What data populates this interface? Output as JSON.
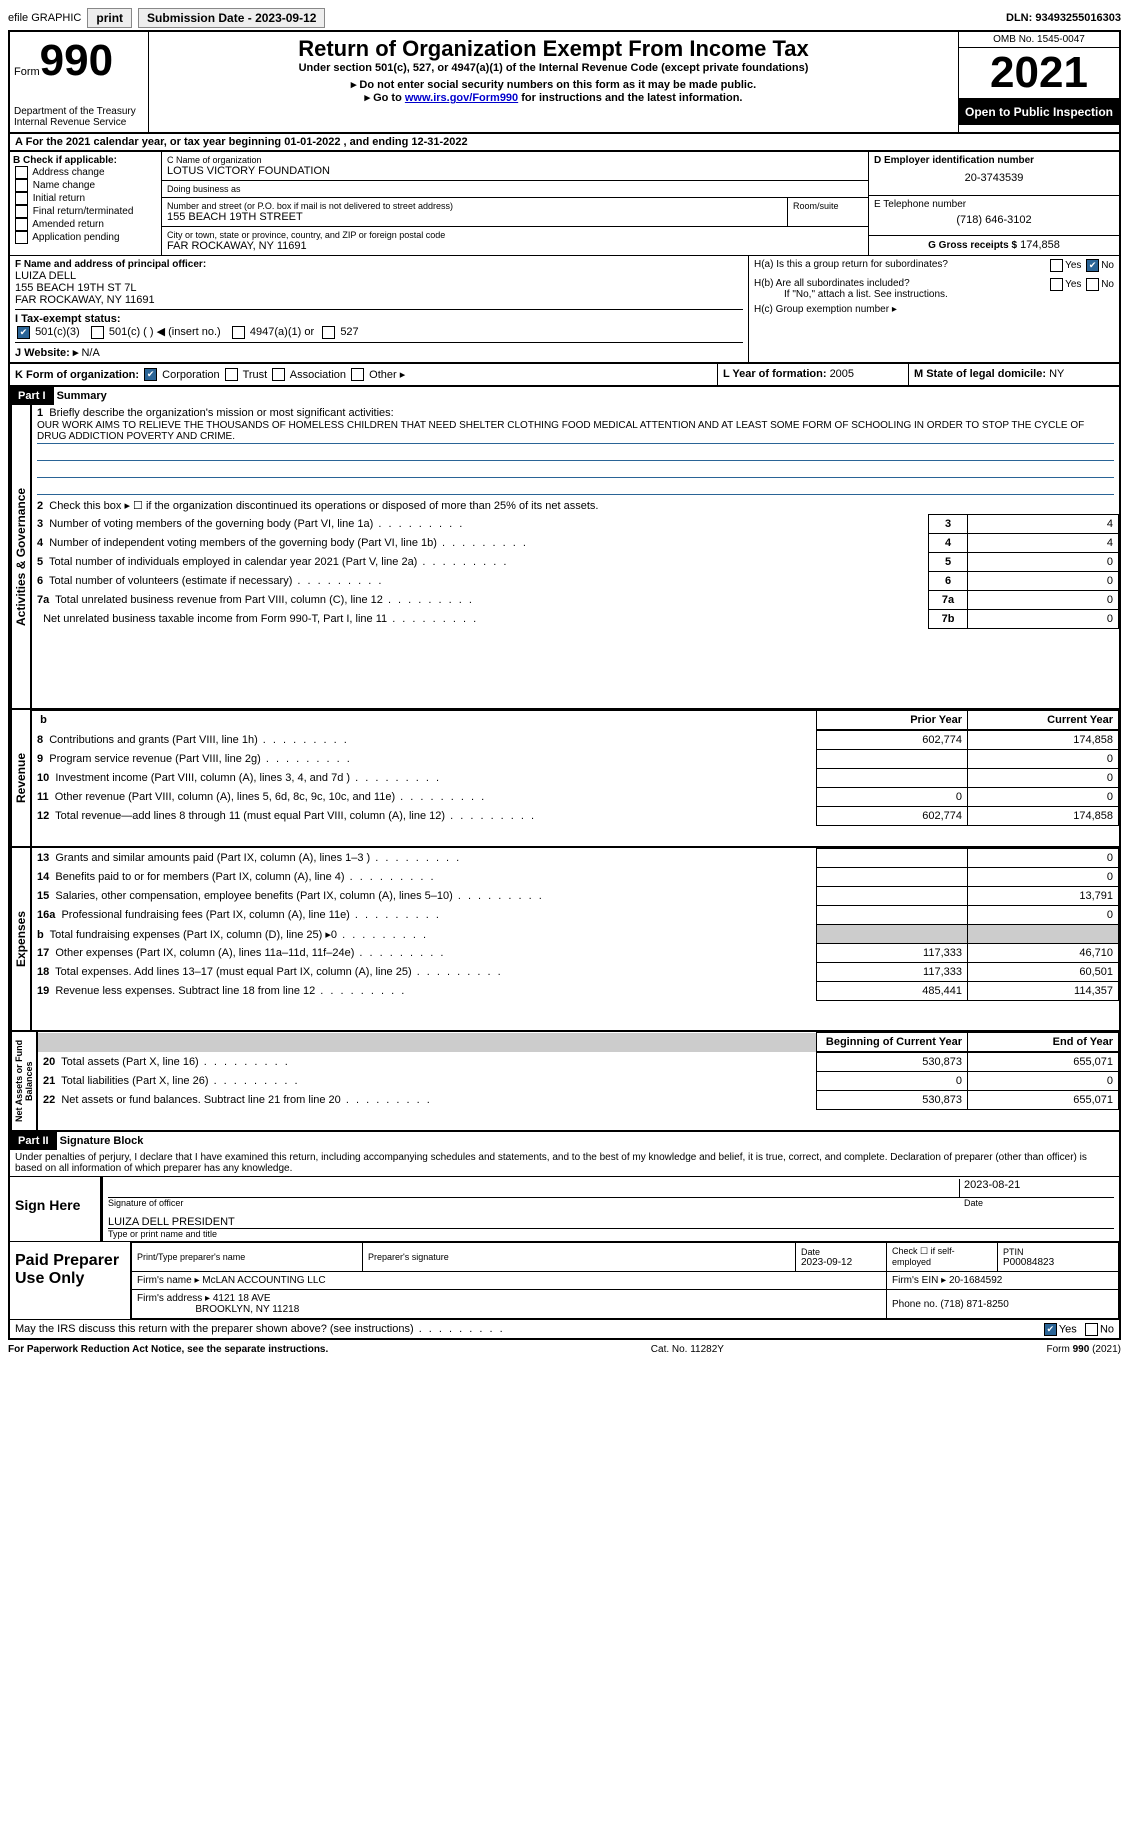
{
  "topbar": {
    "efile": "efile GRAPHIC",
    "print": "print",
    "submission_label": "Submission Date - ",
    "submission_date": "2023-09-12",
    "dln_label": "DLN: ",
    "dln": "93493255016303"
  },
  "header": {
    "form_label": "Form",
    "form_number": "990",
    "dept": "Department of the Treasury\nInternal Revenue Service",
    "title": "Return of Organization Exempt From Income Tax",
    "subtitle": "Under section 501(c), 527, or 4947(a)(1) of the Internal Revenue Code (except private foundations)",
    "note1": "Do not enter social security numbers on this form as it may be made public.",
    "note2_pre": "Go to ",
    "note2_link": "www.irs.gov/Form990",
    "note2_post": " for instructions and the latest information.",
    "omb": "OMB No. 1545-0047",
    "year": "2021",
    "open": "Open to Public Inspection"
  },
  "line_a": {
    "text_pre": "For the 2021 calendar year, or tax year beginning ",
    "begin": "01-01-2022",
    "mid": " , and ending ",
    "end": "12-31-2022"
  },
  "section_b": {
    "label": "B Check if applicable:",
    "items": [
      "Address change",
      "Name change",
      "Initial return",
      "Final return/terminated",
      "Amended return",
      "Application pending"
    ]
  },
  "section_c": {
    "name_label": "C Name of organization",
    "name": "LOTUS VICTORY FOUNDATION",
    "dba_label": "Doing business as",
    "dba": "",
    "street_label": "Number and street (or P.O. box if mail is not delivered to street address)",
    "street": "155 BEACH 19TH STREET",
    "room_label": "Room/suite",
    "city_label": "City or town, state or province, country, and ZIP or foreign postal code",
    "city": "FAR ROCKAWAY, NY  11691"
  },
  "section_d": {
    "label": "D Employer identification number",
    "value": "20-3743539"
  },
  "section_e": {
    "label": "E Telephone number",
    "value": "(718) 646-3102"
  },
  "section_g": {
    "label": "G Gross receipts $",
    "value": "174,858"
  },
  "section_f": {
    "label": "F  Name and address of principal officer:",
    "name": "LUIZA DELL",
    "addr1": "155 BEACH 19TH ST 7L",
    "addr2": "FAR ROCKAWAY, NY  11691"
  },
  "section_h": {
    "a": "H(a)  Is this a group return for subordinates?",
    "b": "H(b)  Are all subordinates included?",
    "b_note": "If \"No,\" attach a list. See instructions.",
    "c": "H(c)  Group exemption number ▸",
    "yes": "Yes",
    "no": "No"
  },
  "section_i": {
    "label": "I   Tax-exempt status:",
    "opts": [
      "501(c)(3)",
      "501(c) (  ) ◀ (insert no.)",
      "4947(a)(1) or",
      "527"
    ]
  },
  "section_j": {
    "label": "J   Website: ▸",
    "value": "N/A"
  },
  "section_k": {
    "label": "K Form of organization:",
    "opts": [
      "Corporation",
      "Trust",
      "Association",
      "Other ▸"
    ]
  },
  "section_l": {
    "label": "L Year of formation: ",
    "value": "2005"
  },
  "section_m": {
    "label": "M State of legal domicile: ",
    "value": "NY"
  },
  "part1": {
    "header": "Part I",
    "title": "Summary",
    "q1": "Briefly describe the organization's mission or most significant activities:",
    "mission": "OUR WORK AIMS TO RELIEVE THE THOUSANDS OF HOMELESS CHILDREN THAT NEED SHELTER CLOTHING FOOD MEDICAL ATTENTION AND AT LEAST SOME FORM OF SCHOOLING IN ORDER TO STOP THE CYCLE OF DRUG ADDICTION POVERTY AND CRIME.",
    "q2": "Check this box ▸ ☐ if the organization discontinued its operations or disposed of more than 25% of its net assets.",
    "vert_activities": "Activities & Governance",
    "vert_revenue": "Revenue",
    "vert_expenses": "Expenses",
    "vert_net": "Net Assets or Fund Balances",
    "prior_year": "Prior Year",
    "current_year": "Current Year",
    "beg_year": "Beginning of Current Year",
    "end_year": "End of Year",
    "rows_gov": [
      {
        "n": "3",
        "t": "Number of voting members of the governing body (Part VI, line 1a)",
        "box": "3",
        "v": "4"
      },
      {
        "n": "4",
        "t": "Number of independent voting members of the governing body (Part VI, line 1b)",
        "box": "4",
        "v": "4"
      },
      {
        "n": "5",
        "t": "Total number of individuals employed in calendar year 2021 (Part V, line 2a)",
        "box": "5",
        "v": "0"
      },
      {
        "n": "6",
        "t": "Total number of volunteers (estimate if necessary)",
        "box": "6",
        "v": "0"
      },
      {
        "n": "7a",
        "t": "Total unrelated business revenue from Part VIII, column (C), line 12",
        "box": "7a",
        "v": "0"
      },
      {
        "n": "",
        "t": "Net unrelated business taxable income from Form 990-T, Part I, line 11",
        "box": "7b",
        "v": "0"
      }
    ],
    "b_line": "b",
    "rows_rev": [
      {
        "n": "8",
        "t": "Contributions and grants (Part VIII, line 1h)",
        "p": "602,774",
        "c": "174,858"
      },
      {
        "n": "9",
        "t": "Program service revenue (Part VIII, line 2g)",
        "p": "",
        "c": "0"
      },
      {
        "n": "10",
        "t": "Investment income (Part VIII, column (A), lines 3, 4, and 7d )",
        "p": "",
        "c": "0"
      },
      {
        "n": "11",
        "t": "Other revenue (Part VIII, column (A), lines 5, 6d, 8c, 9c, 10c, and 11e)",
        "p": "0",
        "c": "0"
      },
      {
        "n": "12",
        "t": "Total revenue—add lines 8 through 11 (must equal Part VIII, column (A), line 12)",
        "p": "602,774",
        "c": "174,858"
      }
    ],
    "rows_exp": [
      {
        "n": "13",
        "t": "Grants and similar amounts paid (Part IX, column (A), lines 1–3 )",
        "p": "",
        "c": "0"
      },
      {
        "n": "14",
        "t": "Benefits paid to or for members (Part IX, column (A), line 4)",
        "p": "",
        "c": "0"
      },
      {
        "n": "15",
        "t": "Salaries, other compensation, employee benefits (Part IX, column (A), lines 5–10)",
        "p": "",
        "c": "13,791"
      },
      {
        "n": "16a",
        "t": "Professional fundraising fees (Part IX, column (A), line 11e)",
        "p": "",
        "c": "0"
      },
      {
        "n": "b",
        "t": "Total fundraising expenses (Part IX, column (D), line 25) ▸0",
        "p": "shaded",
        "c": "shaded"
      },
      {
        "n": "17",
        "t": "Other expenses (Part IX, column (A), lines 11a–11d, 11f–24e)",
        "p": "117,333",
        "c": "46,710"
      },
      {
        "n": "18",
        "t": "Total expenses. Add lines 13–17 (must equal Part IX, column (A), line 25)",
        "p": "117,333",
        "c": "60,501"
      },
      {
        "n": "19",
        "t": "Revenue less expenses. Subtract line 18 from line 12",
        "p": "485,441",
        "c": "114,357"
      }
    ],
    "rows_net": [
      {
        "n": "20",
        "t": "Total assets (Part X, line 16)",
        "p": "530,873",
        "c": "655,071"
      },
      {
        "n": "21",
        "t": "Total liabilities (Part X, line 26)",
        "p": "0",
        "c": "0"
      },
      {
        "n": "22",
        "t": "Net assets or fund balances. Subtract line 21 from line 20",
        "p": "530,873",
        "c": "655,071"
      }
    ]
  },
  "part2": {
    "header": "Part II",
    "title": "Signature Block",
    "declaration": "Under penalties of perjury, I declare that I have examined this return, including accompanying schedules and statements, and to the best of my knowledge and belief, it is true, correct, and complete. Declaration of preparer (other than officer) is based on all information of which preparer has any knowledge.",
    "sign_here": "Sign Here",
    "sig_officer": "Signature of officer",
    "sig_date": "2023-08-21",
    "date_label": "Date",
    "officer_name": "LUIZA DELL  PRESIDENT",
    "officer_name_label": "Type or print name and title",
    "paid": "Paid Preparer Use Only",
    "prep_name_label": "Print/Type preparer's name",
    "prep_sig_label": "Preparer's signature",
    "prep_date_label": "Date",
    "prep_date": "2023-09-12",
    "check_self": "Check ☐ if self-employed",
    "ptin_label": "PTIN",
    "ptin": "P00084823",
    "firm_name_label": "Firm's name   ▸",
    "firm_name": "McLAN ACCOUNTING LLC",
    "firm_ein_label": "Firm's EIN ▸",
    "firm_ein": "20-1684592",
    "firm_addr_label": "Firm's address ▸",
    "firm_addr1": "4121 18 AVE",
    "firm_addr2": "BROOKLYN, NY  11218",
    "phone_label": "Phone no. ",
    "phone": "(718) 871-8250",
    "discuss": "May the IRS discuss this return with the preparer shown above? (see instructions)",
    "yes": "Yes",
    "no": "No"
  },
  "footer": {
    "pra": "For Paperwork Reduction Act Notice, see the separate instructions.",
    "cat": "Cat. No. 11282Y",
    "form": "Form 990 (2021)"
  }
}
